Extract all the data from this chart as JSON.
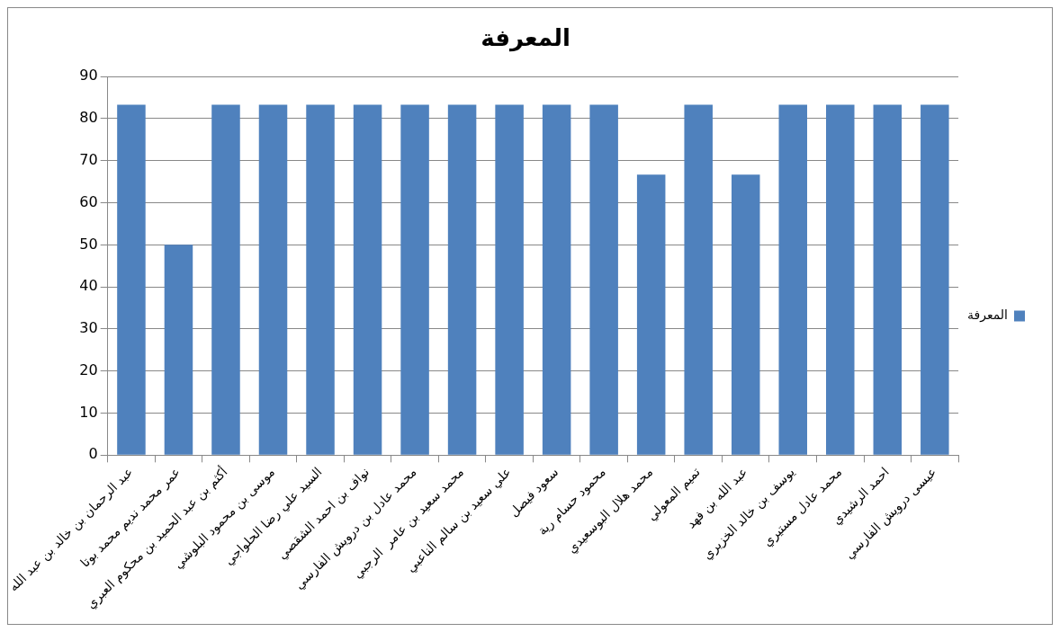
{
  "chart_data": {
    "type": "bar",
    "title": "المعرفة",
    "categories": [
      "عبد الرحمان بن خالد بن عبد الله",
      "عمر محمد نديم محمد بوتا",
      "أكثم بن عبد الحميد بن محكوم العبري",
      "موسى بن محمود البلوشي",
      "السيد علي رضا الحلواجي",
      "نواف بن احمد الشقصي",
      "محمد عادل بن درويش الفارسي",
      "محمد سعيد بن عامر  الرجبي",
      "علي سعيد بن سالم الناعبي",
      "سعود فيصل",
      "محمود حسام رية",
      "محمد هلال البوسعيدي",
      "تميم المعولي",
      "عبد الله بن فهد",
      "يوسف بن خالد الخزيري",
      "محمد عادل مستيري",
      "احمد الرشيدي",
      "عيسى درويش الفارسي"
    ],
    "series": [
      {
        "name": "المعرفة",
        "color": "#4f81bd",
        "values": [
          83.3,
          50,
          83.3,
          83.3,
          83.3,
          83.3,
          83.3,
          83.3,
          83.3,
          83.3,
          83.3,
          66.7,
          83.3,
          66.7,
          83.3,
          83.3,
          83.3,
          83.3
        ]
      }
    ],
    "ylim": [
      0,
      90
    ],
    "yticks": [
      0,
      10,
      20,
      30,
      40,
      50,
      60,
      70,
      80,
      90
    ],
    "grid": "y",
    "legend": "right"
  }
}
